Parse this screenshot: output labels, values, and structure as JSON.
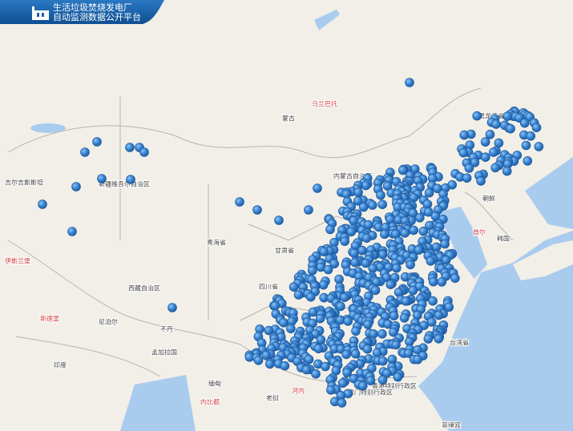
{
  "header": {
    "title_line1": "生活垃圾焚烧发电厂",
    "title_line2": "自动监测数据公开平台"
  },
  "map": {
    "labels": [
      "蒙古",
      "乌兰巴托",
      "新疆维吾尔自治区",
      "吉尔吉斯斯坦",
      "青海省",
      "西藏自治区",
      "四川省",
      "甘肃省",
      "内蒙古自治区",
      "黑龙江省",
      "朝鲜",
      "韩国",
      "首尔",
      "尼泊尔",
      "不丹",
      "孟加拉国",
      "印度",
      "缅甸",
      "老挝",
      "河内",
      "新德里",
      "伊斯兰堡",
      "香港特别行政区",
      "澳门特别行政区",
      "台湾省",
      "菲律宾",
      "内比都"
    ]
  }
}
